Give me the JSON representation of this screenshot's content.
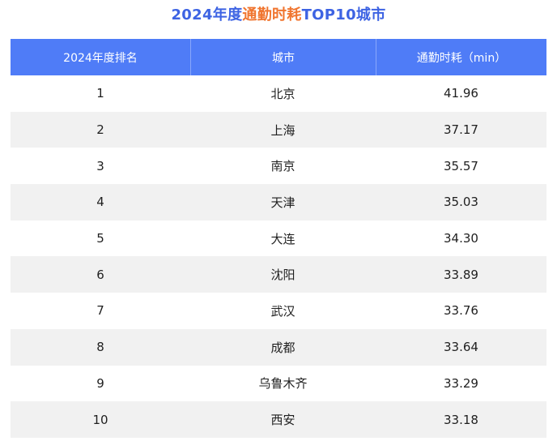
{
  "chart_data": {
    "type": "table",
    "title_parts": {
      "before": "2024年度",
      "highlight": "通勤时耗",
      "after": "TOP10城市"
    },
    "colors": {
      "title_blue": "#3d63e3",
      "title_orange": "#f0752f",
      "header_bg": "#4f7cf7",
      "header_text": "#ffffff",
      "stripe_bg": "#f1f1f1"
    },
    "columns": [
      "2024年度排名",
      "城市",
      "通勤时耗（min）"
    ],
    "rows": [
      {
        "rank": "1",
        "city": "北京",
        "minutes": "41.96"
      },
      {
        "rank": "2",
        "city": "上海",
        "minutes": "37.17"
      },
      {
        "rank": "3",
        "city": "南京",
        "minutes": "35.57"
      },
      {
        "rank": "4",
        "city": "天津",
        "minutes": "35.03"
      },
      {
        "rank": "5",
        "city": "大连",
        "minutes": "34.30"
      },
      {
        "rank": "6",
        "city": "沈阳",
        "minutes": "33.89"
      },
      {
        "rank": "7",
        "city": "武汉",
        "minutes": "33.76"
      },
      {
        "rank": "8",
        "city": "成都",
        "minutes": "33.64"
      },
      {
        "rank": "9",
        "city": "乌鲁木齐",
        "minutes": "33.29"
      },
      {
        "rank": "10",
        "city": "西安",
        "minutes": "33.18"
      }
    ]
  }
}
